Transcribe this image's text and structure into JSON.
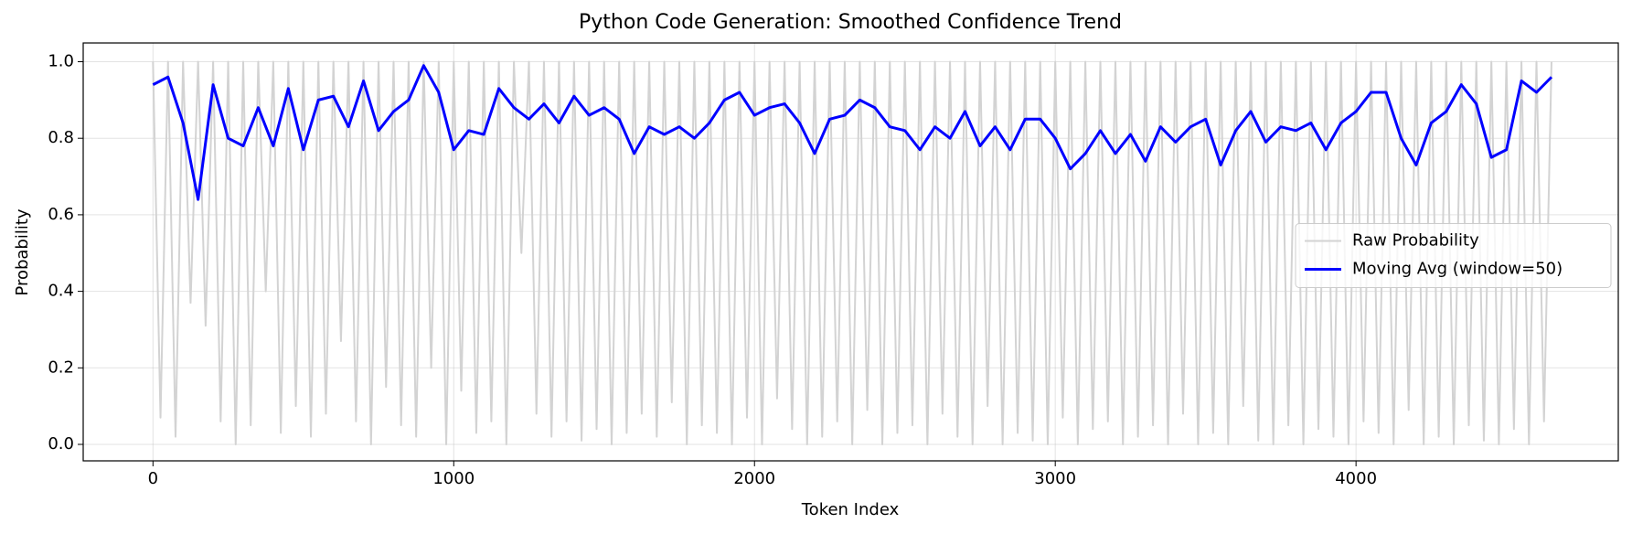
{
  "chart_data": {
    "type": "line",
    "title": "Python Code Generation: Smoothed Confidence Trend",
    "x_label": "Token Index",
    "y_label": "Probability",
    "xlim": [
      -232,
      4872
    ],
    "ylim": [
      -0.043,
      1.049
    ],
    "xticks": [
      0,
      1000,
      2000,
      3000,
      4000
    ],
    "yticks": [
      {
        "value": 0,
        "label": "0.0"
      },
      0.2,
      0.4,
      0.6,
      0.8,
      {
        "value": 1,
        "label": "1.0"
      }
    ],
    "grid": true,
    "legend_position": "center right",
    "series": [
      {
        "name": "Raw Probability",
        "color": "#d3d3d3",
        "x": [
          0,
          25,
          50,
          75,
          100,
          125,
          150,
          175,
          200,
          225,
          250,
          275,
          300,
          325,
          350,
          375,
          400,
          425,
          450,
          475,
          500,
          525,
          550,
          575,
          600,
          625,
          650,
          675,
          700,
          725,
          750,
          775,
          800,
          825,
          850,
          875,
          900,
          925,
          950,
          975,
          1000,
          1025,
          1050,
          1075,
          1100,
          1125,
          1150,
          1175,
          1200,
          1225,
          1250,
          1275,
          1300,
          1325,
          1350,
          1375,
          1400,
          1425,
          1450,
          1475,
          1500,
          1525,
          1550,
          1575,
          1600,
          1625,
          1650,
          1675,
          1700,
          1725,
          1750,
          1775,
          1800,
          1825,
          1850,
          1875,
          1900,
          1925,
          1950,
          1975,
          2000,
          2025,
          2050,
          2075,
          2100,
          2125,
          2150,
          2175,
          2200,
          2225,
          2250,
          2275,
          2300,
          2325,
          2350,
          2375,
          2400,
          2425,
          2450,
          2475,
          2500,
          2525,
          2550,
          2575,
          2600,
          2625,
          2650,
          2675,
          2700,
          2725,
          2750,
          2775,
          2800,
          2825,
          2850,
          2875,
          2900,
          2925,
          2950,
          2975,
          3000,
          3025,
          3050,
          3075,
          3100,
          3125,
          3150,
          3175,
          3200,
          3225,
          3250,
          3275,
          3300,
          3325,
          3350,
          3375,
          3400,
          3425,
          3450,
          3475,
          3500,
          3525,
          3550,
          3575,
          3600,
          3625,
          3650,
          3675,
          3700,
          3725,
          3750,
          3775,
          3800,
          3825,
          3850,
          3875,
          3900,
          3925,
          3950,
          3975,
          4000,
          4025,
          4050,
          4075,
          4100,
          4125,
          4150,
          4175,
          4200,
          4225,
          4250,
          4275,
          4300,
          4325,
          4350,
          4375,
          4400,
          4425,
          4450,
          4475,
          4500,
          4525,
          4550,
          4575,
          4600,
          4625,
          4650
        ],
        "values": [
          1.0,
          0.07,
          1.0,
          0.02,
          1.0,
          0.37,
          1.0,
          0.31,
          1.0,
          0.06,
          1.0,
          0.0,
          1.0,
          0.05,
          1.0,
          0.4,
          1.0,
          0.03,
          1.0,
          0.1,
          1.0,
          0.02,
          1.0,
          0.08,
          1.0,
          0.27,
          1.0,
          0.06,
          1.0,
          0.0,
          1.0,
          0.15,
          1.0,
          0.05,
          1.0,
          0.02,
          1.0,
          0.2,
          1.0,
          0.0,
          1.0,
          0.14,
          1.0,
          0.03,
          1.0,
          0.06,
          1.0,
          0.0,
          1.0,
          0.5,
          1.0,
          0.08,
          1.0,
          0.02,
          1.0,
          0.06,
          1.0,
          0.01,
          1.0,
          0.04,
          1.0,
          0.0,
          1.0,
          0.03,
          1.0,
          0.08,
          1.0,
          0.02,
          1.0,
          0.11,
          1.0,
          0.0,
          1.0,
          0.05,
          1.0,
          0.03,
          1.0,
          0.0,
          1.0,
          0.07,
          1.0,
          0.0,
          1.0,
          0.12,
          1.0,
          0.04,
          1.0,
          0.0,
          1.0,
          0.02,
          1.0,
          0.06,
          1.0,
          0.0,
          1.0,
          0.09,
          1.0,
          0.0,
          1.0,
          0.03,
          1.0,
          0.05,
          1.0,
          0.0,
          1.0,
          0.08,
          1.0,
          0.02,
          1.0,
          0.0,
          1.0,
          0.1,
          1.0,
          0.0,
          1.0,
          0.03,
          1.0,
          0.01,
          1.0,
          0.0,
          1.0,
          0.07,
          1.0,
          0.0,
          1.0,
          0.04,
          1.0,
          0.06,
          1.0,
          0.0,
          1.0,
          0.02,
          1.0,
          0.05,
          1.0,
          0.0,
          1.0,
          0.08,
          1.0,
          0.0,
          1.0,
          0.03,
          1.0,
          0.0,
          1.0,
          0.1,
          1.0,
          0.01,
          1.0,
          0.0,
          1.0,
          0.05,
          1.0,
          0.0,
          1.0,
          0.04,
          1.0,
          0.02,
          1.0,
          0.0,
          1.0,
          0.06,
          1.0,
          0.03,
          1.0,
          0.0,
          1.0,
          0.09,
          1.0,
          0.0,
          1.0,
          0.02,
          1.0,
          0.0,
          1.0,
          0.05,
          1.0,
          0.01,
          1.0,
          0.0,
          1.0,
          0.04,
          1.0,
          0.0,
          1.0,
          0.06,
          1.0
        ]
      },
      {
        "name": "Moving Avg (window=50)",
        "color": "#0000ff",
        "x": [
          0,
          50,
          100,
          150,
          200,
          250,
          300,
          350,
          400,
          450,
          500,
          550,
          600,
          650,
          700,
          750,
          800,
          850,
          900,
          950,
          1000,
          1050,
          1100,
          1150,
          1200,
          1250,
          1300,
          1350,
          1400,
          1450,
          1500,
          1550,
          1600,
          1650,
          1700,
          1750,
          1800,
          1850,
          1900,
          1950,
          2000,
          2050,
          2100,
          2150,
          2200,
          2250,
          2300,
          2350,
          2400,
          2450,
          2500,
          2550,
          2600,
          2650,
          2700,
          2750,
          2800,
          2850,
          2900,
          2950,
          3000,
          3050,
          3100,
          3150,
          3200,
          3250,
          3300,
          3350,
          3400,
          3450,
          3500,
          3550,
          3600,
          3650,
          3700,
          3750,
          3800,
          3850,
          3900,
          3950,
          4000,
          4050,
          4100,
          4150,
          4200,
          4250,
          4300,
          4350,
          4400,
          4450,
          4500,
          4550,
          4600,
          4650
        ],
        "values": [
          0.94,
          0.96,
          0.84,
          0.64,
          0.94,
          0.8,
          0.78,
          0.88,
          0.78,
          0.93,
          0.77,
          0.9,
          0.91,
          0.83,
          0.95,
          0.82,
          0.87,
          0.9,
          0.99,
          0.92,
          0.77,
          0.82,
          0.81,
          0.93,
          0.88,
          0.85,
          0.89,
          0.84,
          0.91,
          0.86,
          0.88,
          0.85,
          0.76,
          0.83,
          0.81,
          0.83,
          0.8,
          0.84,
          0.9,
          0.92,
          0.86,
          0.88,
          0.89,
          0.84,
          0.76,
          0.85,
          0.86,
          0.9,
          0.88,
          0.83,
          0.82,
          0.77,
          0.83,
          0.8,
          0.87,
          0.78,
          0.83,
          0.77,
          0.85,
          0.85,
          0.8,
          0.72,
          0.76,
          0.82,
          0.76,
          0.81,
          0.74,
          0.83,
          0.79,
          0.83,
          0.85,
          0.73,
          0.82,
          0.87,
          0.79,
          0.83,
          0.82,
          0.84,
          0.77,
          0.84,
          0.87,
          0.92,
          0.92,
          0.8,
          0.73,
          0.84,
          0.87,
          0.94,
          0.89,
          0.75,
          0.77,
          0.95,
          0.92,
          0.96
        ]
      }
    ]
  }
}
